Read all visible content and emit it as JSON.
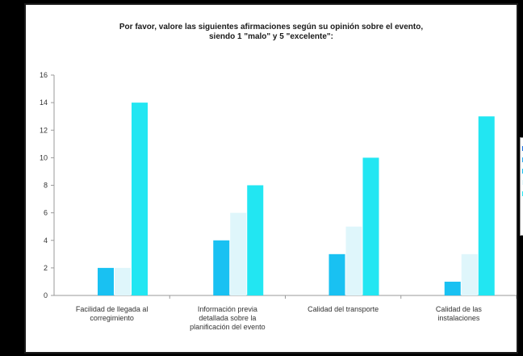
{
  "chart_data": {
    "type": "bar",
    "title": "Por favor, valore las siguientes afirmaciones según su opinión sobre el evento,",
    "subtitle": "siendo 1 \"malo\" y 5 \"excelente\":",
    "categories": [
      [
        "Facilidad de llegada al",
        "corregimiento"
      ],
      [
        "Información previa",
        "detallada sobre la",
        "planificación del evento"
      ],
      [
        "Calidad del transporte"
      ],
      [
        "Calidad de las",
        "instalaciones"
      ]
    ],
    "series": [
      {
        "color": "#1b6fe0",
        "values": [
          0,
          0,
          0,
          0
        ]
      },
      {
        "color": "#2aa8f0",
        "values": [
          0,
          0,
          0,
          0
        ]
      },
      {
        "color": "#19c1f2",
        "values": [
          2,
          4,
          3,
          1
        ]
      },
      {
        "color": "#dff6fb",
        "values": [
          2,
          6,
          5,
          3
        ]
      },
      {
        "color": "#22e6f2",
        "values": [
          14,
          8,
          10,
          13
        ]
      }
    ],
    "yticks": [
      0,
      2,
      4,
      6,
      8,
      10,
      12,
      14,
      16
    ],
    "ylim": [
      0,
      16
    ],
    "grid": false,
    "legend_placement": "right"
  }
}
